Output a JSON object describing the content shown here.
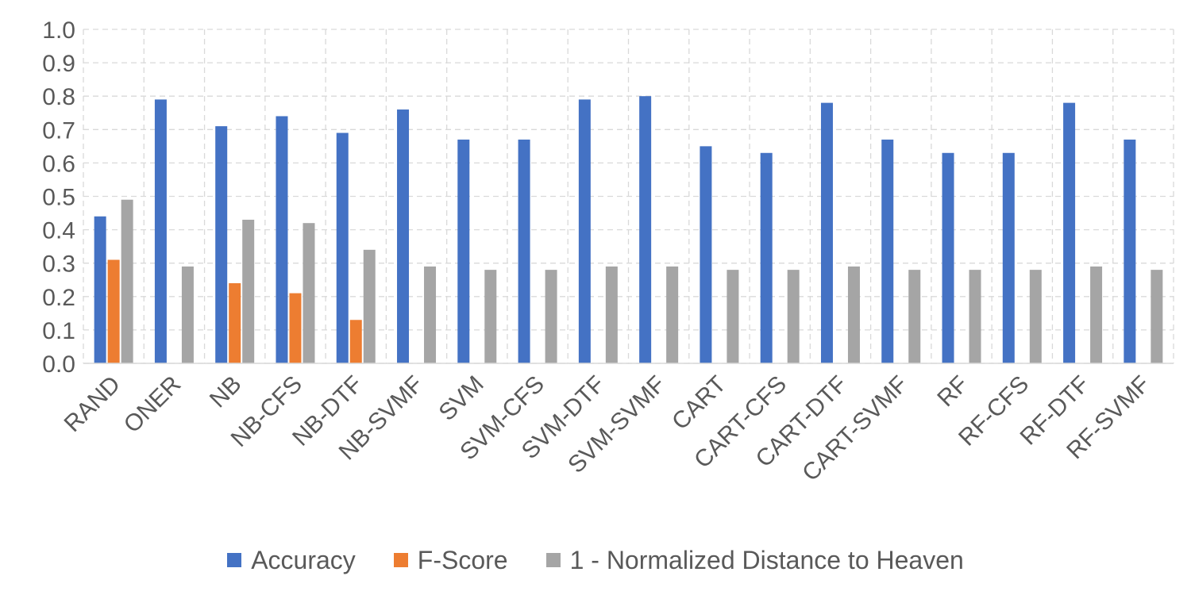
{
  "chart_data": {
    "type": "bar",
    "title": "",
    "xlabel": "",
    "ylabel": "",
    "ylim": [
      0,
      1.0
    ],
    "y_ticks": [
      "0.0",
      "0.1",
      "0.2",
      "0.3",
      "0.4",
      "0.5",
      "0.6",
      "0.7",
      "0.8",
      "0.9",
      "1.0"
    ],
    "grid": "dashed",
    "legend_position": "bottom",
    "categories": [
      "RAND",
      "ONER",
      "NB",
      "NB-CFS",
      "NB-DTF",
      "NB-SVMF",
      "SVM",
      "SVM-CFS",
      "SVM-DTF",
      "SVM-SVMF",
      "CART",
      "CART-CFS",
      "CART-DTF",
      "CART-SVMF",
      "RF",
      "RF-CFS",
      "RF-DTF",
      "RF-SVMF"
    ],
    "series": [
      {
        "name": "Accuracy",
        "color": "#4472C4",
        "values": [
          0.44,
          0.79,
          0.71,
          0.74,
          0.69,
          0.76,
          0.67,
          0.67,
          0.79,
          0.8,
          0.65,
          0.63,
          0.78,
          0.67,
          0.63,
          0.63,
          0.78,
          0.67
        ]
      },
      {
        "name": "F-Score",
        "color": "#ED7D31",
        "values": [
          0.31,
          0,
          0.24,
          0.21,
          0.13,
          0,
          0,
          0,
          0,
          0,
          0,
          0,
          0,
          0,
          0,
          0,
          0,
          0
        ]
      },
      {
        "name": "1 - Normalized Distance to Heaven",
        "color": "#A5A5A5",
        "values": [
          0.49,
          0.29,
          0.43,
          0.42,
          0.34,
          0.29,
          0.28,
          0.28,
          0.29,
          0.29,
          0.28,
          0.28,
          0.29,
          0.28,
          0.28,
          0.28,
          0.29,
          0.28
        ]
      }
    ]
  }
}
